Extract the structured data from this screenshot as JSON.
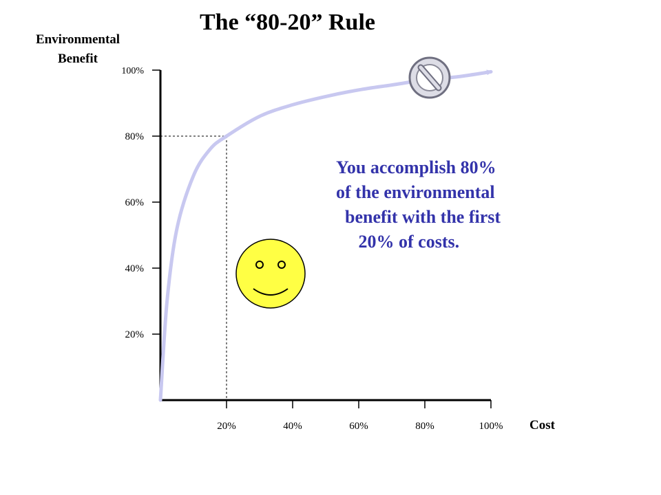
{
  "chart_data": {
    "type": "line",
    "title": "The “80-20” Rule",
    "ylabel_lines": [
      "Environmental",
      "Benefit"
    ],
    "xlabel": "Cost",
    "xlim": [
      0,
      100
    ],
    "ylim": [
      0,
      100
    ],
    "x_ticks": [
      "20%",
      "40%",
      "60%",
      "80%",
      "100%"
    ],
    "y_ticks": [
      "20%",
      "40%",
      "60%",
      "80%",
      "100%"
    ],
    "series": [
      {
        "x": [
          0,
          2,
          5,
          10,
          15,
          20,
          30,
          40,
          50,
          60,
          70,
          80,
          90,
          100
        ],
        "y": [
          0,
          30,
          52,
          68,
          76,
          80,
          86,
          89.5,
          92,
          94,
          95.5,
          97,
          98,
          99.5
        ]
      }
    ],
    "reference_point": {
      "x": 20,
      "y": 80
    },
    "annotation_lines": [
      "You accomplish 80%",
      "of the environmental",
      "  benefit with the first",
      "     20% of costs."
    ]
  },
  "icons": {
    "prohibited": "no-entry-icon",
    "smiley": "smiley-face-icon"
  },
  "colors": {
    "curve": "#c8c8f0",
    "annotation": "#3333aa",
    "smiley": "#ffff44"
  }
}
